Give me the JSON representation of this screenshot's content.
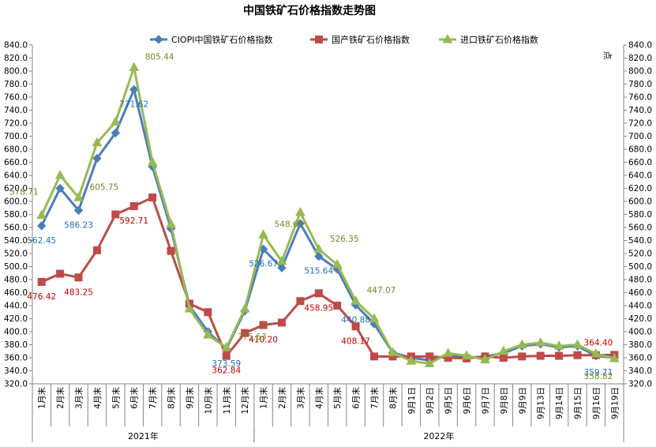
{
  "chart_data": {
    "type": "line",
    "title": "中国铁矿石价格指数走势图",
    "right_axis_label": "点",
    "ylim": [
      320,
      840
    ],
    "y_tick_step": 20,
    "grid": false,
    "legend_position": "top",
    "categories": [
      "1月末",
      "2月末",
      "3月末",
      "4月末",
      "5月末",
      "6月末",
      "7月末",
      "8月末",
      "9月末",
      "10月末",
      "11月末",
      "12月末",
      "1月末",
      "2月末",
      "3月末",
      "4月末",
      "5月末",
      "6月末",
      "7月末",
      "8月末",
      "9月1日",
      "9月2日",
      "9月5日",
      "9月6日",
      "9月7日",
      "9月8日",
      "9月9日",
      "9月13日",
      "9月14日",
      "9月15日",
      "9月16日",
      "9月19日"
    ],
    "groups": [
      {
        "label": "2021年",
        "start": 0,
        "end": 11
      },
      {
        "label": "2022年",
        "start": 12,
        "end": 31
      }
    ],
    "series": [
      {
        "name": "CIOPI中国铁矿石价格指数",
        "color": "#4a7ebb",
        "marker": "diamond",
        "values": [
          562.45,
          620,
          586.23,
          666,
          705,
          771.62,
          653,
          558,
          440,
          400,
          373.59,
          432,
          526.67,
          498,
          566,
          515.64,
          496,
          440.88,
          412,
          368,
          360,
          356,
          364,
          360,
          362,
          367,
          378,
          381,
          376,
          378,
          363,
          359.71
        ],
        "labels": [
          {
            "index": 0,
            "text": "562.45"
          },
          {
            "index": 2,
            "text": "586.23"
          },
          {
            "index": 5,
            "text": "771.62"
          },
          {
            "index": 10,
            "text": "373.59"
          },
          {
            "index": 12,
            "text": "526.67"
          },
          {
            "index": 15,
            "text": "515.64"
          },
          {
            "index": 17,
            "text": "440.88"
          },
          {
            "index": 31,
            "text": "359.71"
          }
        ]
      },
      {
        "name": "国产铁矿石价格指数",
        "color": "#be4b48",
        "marker": "square",
        "values": [
          476.42,
          489,
          483.25,
          525,
          580,
          592.71,
          606,
          524,
          443,
          430,
          362.84,
          398,
          410.2,
          414,
          447,
          458.95,
          440,
          408.17,
          362,
          362,
          362,
          362,
          360,
          359,
          362,
          360,
          362,
          363,
          363,
          364,
          364,
          364.4
        ],
        "labels": [
          {
            "index": 0,
            "text": "476.42"
          },
          {
            "index": 2,
            "text": "483.25"
          },
          {
            "index": 5,
            "text": "592.71"
          },
          {
            "index": 10,
            "text": "362.84"
          },
          {
            "index": 12,
            "text": "410.20"
          },
          {
            "index": 15,
            "text": "458.95"
          },
          {
            "index": 17,
            "text": "408.17"
          },
          {
            "index": 31,
            "text": "364.40"
          }
        ]
      },
      {
        "name": "进口铁矿石价格指数",
        "color": "#98b954",
        "marker": "triangle",
        "values": [
          578.71,
          640,
          605.75,
          690,
          722,
          805.44,
          660,
          565,
          435,
          395,
          375.63,
          435,
          548.68,
          508,
          583,
          526.35,
          503,
          447.07,
          420,
          368,
          355,
          351,
          367,
          363,
          357,
          370,
          380,
          383,
          378,
          380,
          366,
          358.82
        ],
        "labels": [
          {
            "index": 0,
            "text": "578.71"
          },
          {
            "index": 2,
            "text": "605.75"
          },
          {
            "index": 5,
            "text": "805.44"
          },
          {
            "index": 10,
            "text": "375.63"
          },
          {
            "index": 12,
            "text": "548.68"
          },
          {
            "index": 15,
            "text": "526.35"
          },
          {
            "index": 17,
            "text": "447.07"
          },
          {
            "index": 31,
            "text": "358.82"
          }
        ]
      }
    ]
  }
}
